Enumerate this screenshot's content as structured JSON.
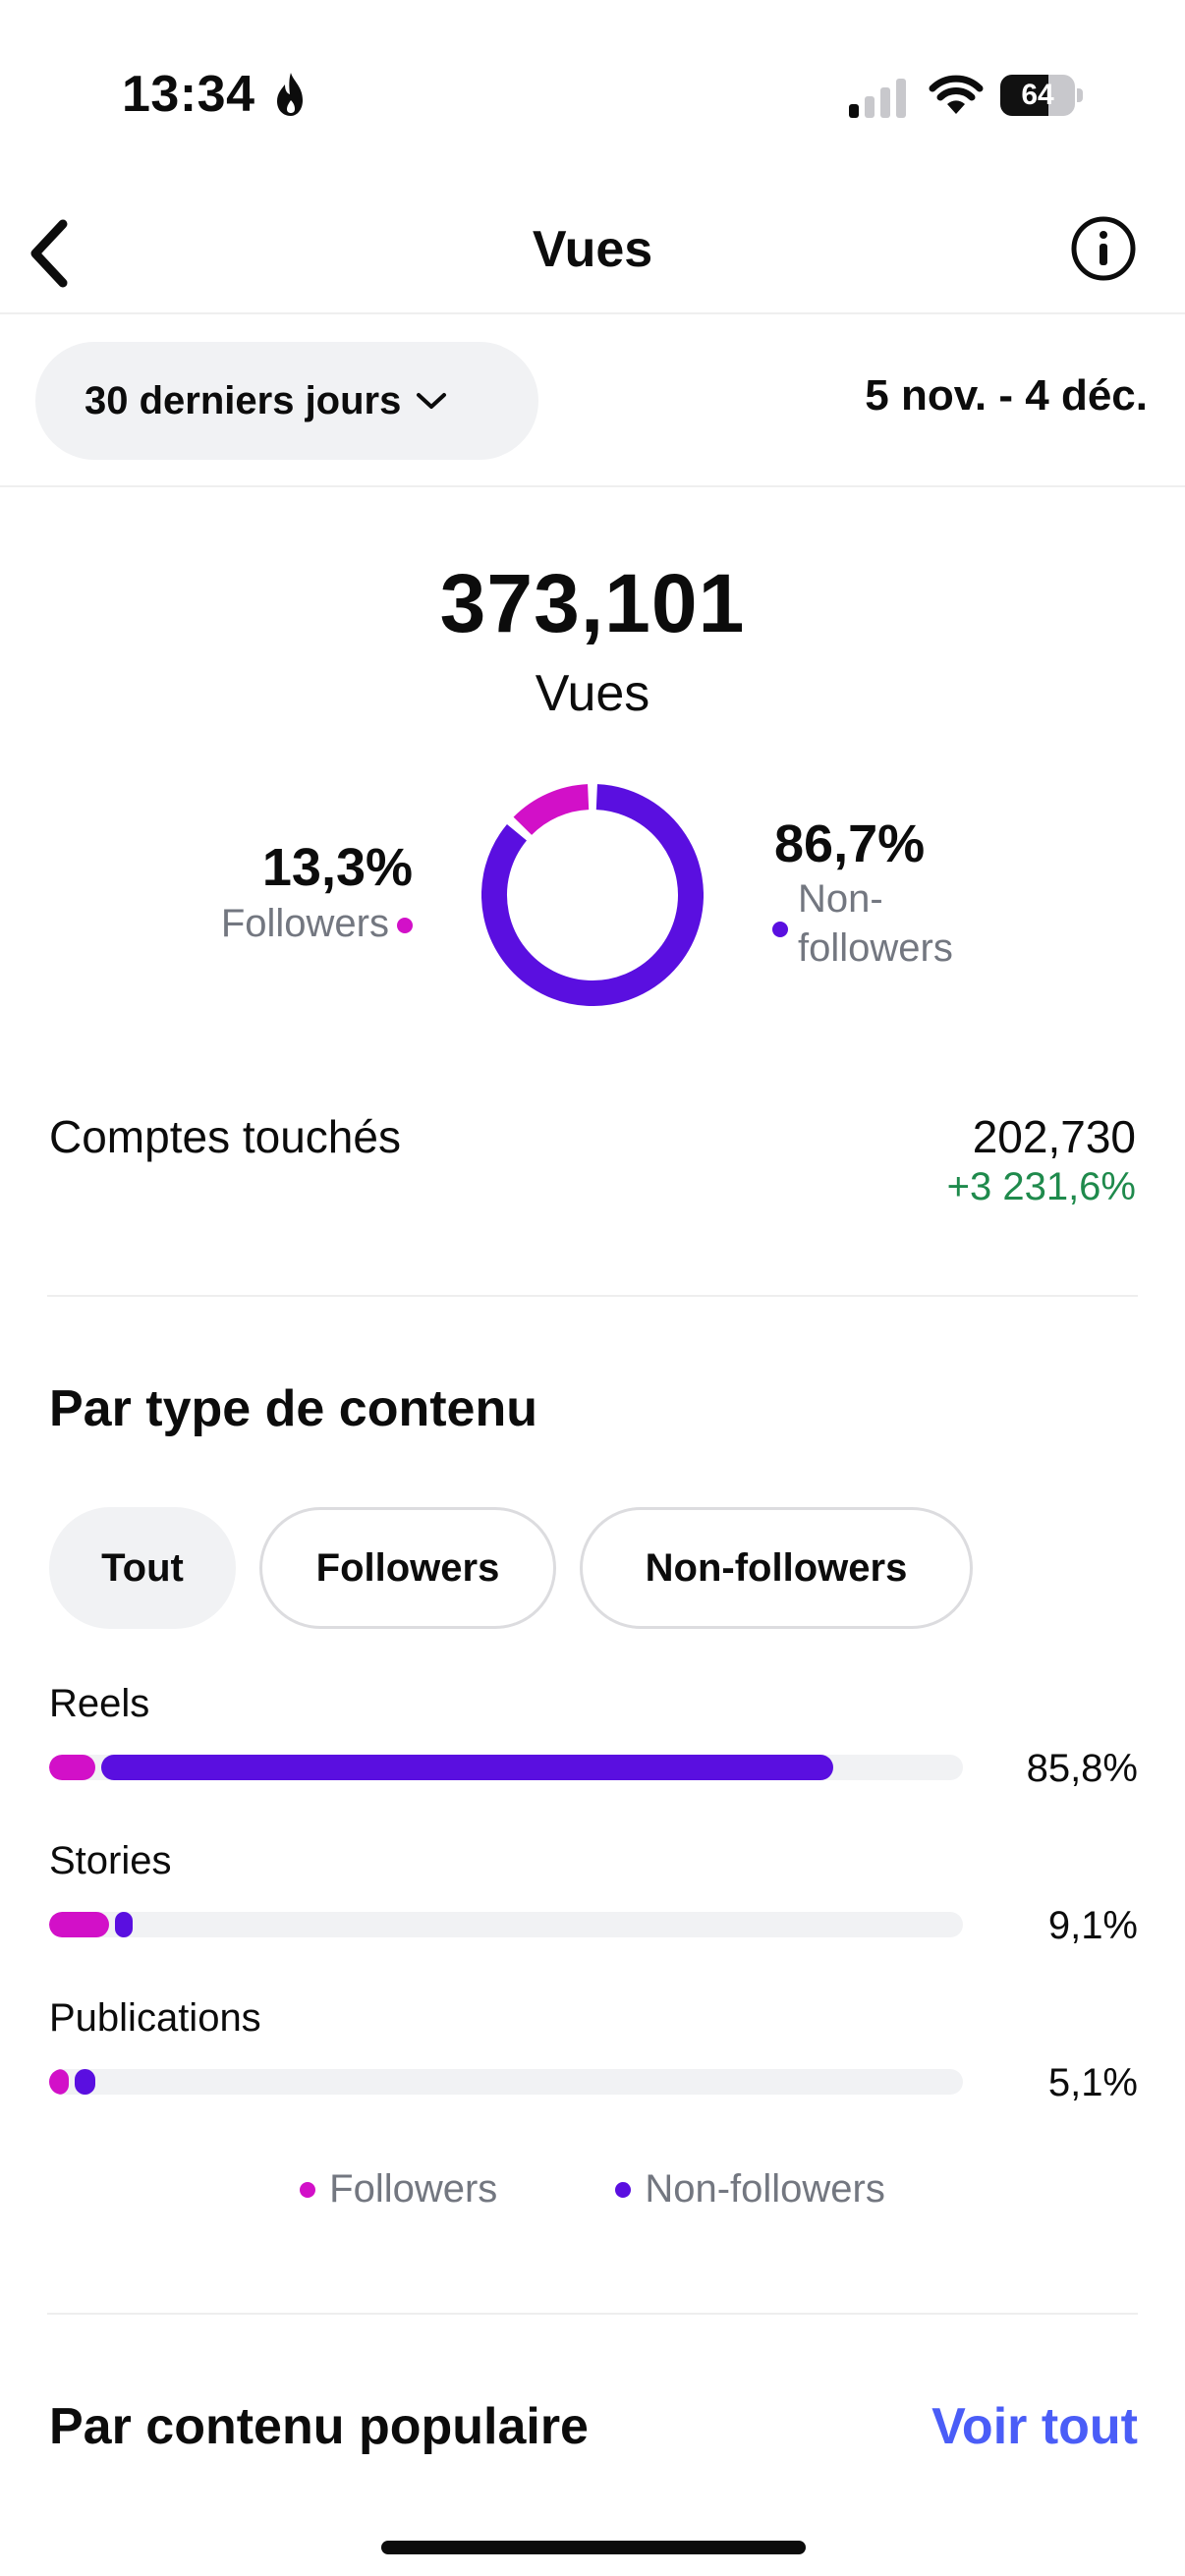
{
  "status_bar": {
    "time": "13:34",
    "battery": "64",
    "battery_level": 0.64
  },
  "header": {
    "title": "Vues"
  },
  "filter": {
    "period_label": "30 derniers jours",
    "date_range": "5 nov. - 4 déc."
  },
  "summary": {
    "total_value": "373,101",
    "total_label": "Vues",
    "followers_pct": "13,3%",
    "followers_label": "Followers",
    "nonfollowers_pct": "86,7%",
    "nonfollowers_label": "Non-followers",
    "followers_share": 13.3,
    "nonfollowers_share": 86.7
  },
  "accounts": {
    "label": "Comptes touchés",
    "value": "202,730",
    "change": "+3 231,6%"
  },
  "content_type": {
    "title": "Par type de contenu",
    "tabs": [
      "Tout",
      "Followers",
      "Non-followers"
    ],
    "rows": [
      {
        "label": "Reels",
        "pct": "85,8%",
        "followers": 5.0,
        "nonfollowers": 80.8
      },
      {
        "label": "Stories",
        "pct": "9,1%",
        "followers": 6.6,
        "nonfollowers": 2.5
      },
      {
        "label": "Publications",
        "pct": "5,1%",
        "followers": 2.1,
        "nonfollowers": 3.0
      }
    ],
    "legend": [
      "Followers",
      "Non-followers"
    ]
  },
  "popular": {
    "title": "Par contenu populaire",
    "see_all": "Voir tout"
  },
  "colors": {
    "followers": "#d210c8",
    "nonfollowers": "#5a0fe0",
    "positive": "#1f8a4c",
    "link": "#4a5df7"
  }
}
